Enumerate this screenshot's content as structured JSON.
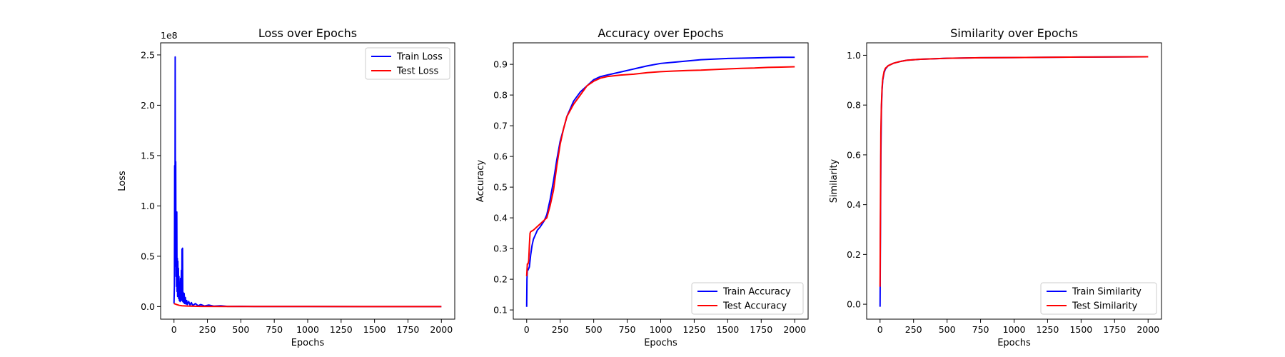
{
  "figure": {
    "background": "#ffffff"
  },
  "chart_data": [
    {
      "type": "line",
      "title": "Loss over Epochs",
      "xlabel": "Epochs",
      "ylabel": "Loss",
      "offset_text": "1e8",
      "xlim": [
        -100,
        2100
      ],
      "ylim": [
        -12500000,
        262000000
      ],
      "xticks": [
        0,
        250,
        500,
        750,
        1000,
        1250,
        1500,
        1750,
        2000
      ],
      "xtick_labels": [
        "0",
        "250",
        "500",
        "750",
        "1000",
        "1250",
        "1500",
        "1750",
        "2000"
      ],
      "yticks": [
        0,
        50000000,
        100000000,
        150000000,
        200000000,
        250000000
      ],
      "ytick_labels": [
        "0.0",
        "0.5",
        "1.0",
        "1.5",
        "2.0",
        "2.5"
      ],
      "legend_position": "upper right",
      "grid": false,
      "series": [
        {
          "name": "Train Loss",
          "color": "#0000ff",
          "points": [
            [
              0,
              3000000
            ],
            [
              3,
              20000000
            ],
            [
              5,
              140000000
            ],
            [
              7,
              40000000
            ],
            [
              9,
              248000000
            ],
            [
              11,
              60000000
            ],
            [
              13,
              144000000
            ],
            [
              15,
              30000000
            ],
            [
              17,
              92000000
            ],
            [
              19,
              20000000
            ],
            [
              21,
              94000000
            ],
            [
              23,
              15000000
            ],
            [
              25,
              48000000
            ],
            [
              27,
              10000000
            ],
            [
              29,
              45000000
            ],
            [
              31,
              12000000
            ],
            [
              33,
              38000000
            ],
            [
              35,
              8000000
            ],
            [
              37,
              30000000
            ],
            [
              40,
              6000000
            ],
            [
              43,
              22000000
            ],
            [
              46,
              5000000
            ],
            [
              49,
              28000000
            ],
            [
              52,
              6000000
            ],
            [
              55,
              36000000
            ],
            [
              58,
              8000000
            ],
            [
              60,
              57000000
            ],
            [
              62,
              6000000
            ],
            [
              64,
              58000000
            ],
            [
              66,
              5000000
            ],
            [
              69,
              14000000
            ],
            [
              72,
              4000000
            ],
            [
              76,
              13000000
            ],
            [
              80,
              3000000
            ],
            [
              85,
              9000000
            ],
            [
              90,
              2500000
            ],
            [
              95,
              6000000
            ],
            [
              100,
              2000000
            ],
            [
              110,
              5000000
            ],
            [
              120,
              1500000
            ],
            [
              130,
              4000000
            ],
            [
              140,
              1000000
            ],
            [
              160,
              3000000
            ],
            [
              180,
              800000
            ],
            [
              200,
              2000000
            ],
            [
              230,
              600000
            ],
            [
              260,
              1500000
            ],
            [
              300,
              400000
            ],
            [
              350,
              800000
            ],
            [
              400,
              200000
            ],
            [
              500,
              300000
            ],
            [
              600,
              100000
            ],
            [
              800,
              100000
            ],
            [
              1000,
              50000
            ],
            [
              1500,
              30000
            ],
            [
              2000,
              20000
            ]
          ]
        },
        {
          "name": "Test Loss",
          "color": "#ff0000",
          "points": [
            [
              0,
              3000000
            ],
            [
              10,
              2500000
            ],
            [
              20,
              2000000
            ],
            [
              40,
              1200000
            ],
            [
              60,
              800000
            ],
            [
              100,
              500000
            ],
            [
              200,
              200000
            ],
            [
              400,
              100000
            ],
            [
              1000,
              50000
            ],
            [
              2000,
              30000
            ]
          ]
        }
      ]
    },
    {
      "type": "line",
      "title": "Accuracy over Epochs",
      "xlabel": "Epochs",
      "ylabel": "Accuracy",
      "xlim": [
        -100,
        2100
      ],
      "ylim": [
        0.07,
        0.97
      ],
      "xticks": [
        0,
        250,
        500,
        750,
        1000,
        1250,
        1500,
        1750,
        2000
      ],
      "xtick_labels": [
        "0",
        "250",
        "500",
        "750",
        "1000",
        "1250",
        "1500",
        "1750",
        "2000"
      ],
      "yticks": [
        0.1,
        0.2,
        0.3,
        0.4,
        0.5,
        0.6,
        0.7,
        0.8,
        0.9
      ],
      "ytick_labels": [
        "0.1",
        "0.2",
        "0.3",
        "0.4",
        "0.5",
        "0.6",
        "0.7",
        "0.8",
        "0.9"
      ],
      "legend_position": "lower right",
      "grid": false,
      "series": [
        {
          "name": "Train Accuracy",
          "color": "#0000ff",
          "points": [
            [
              0,
              0.11
            ],
            [
              2,
              0.2
            ],
            [
              5,
              0.23
            ],
            [
              10,
              0.23
            ],
            [
              20,
              0.24
            ],
            [
              30,
              0.28
            ],
            [
              40,
              0.31
            ],
            [
              50,
              0.33
            ],
            [
              60,
              0.34
            ],
            [
              80,
              0.36
            ],
            [
              100,
              0.37
            ],
            [
              130,
              0.39
            ],
            [
              150,
              0.41
            ],
            [
              175,
              0.46
            ],
            [
              200,
              0.52
            ],
            [
              225,
              0.59
            ],
            [
              250,
              0.65
            ],
            [
              275,
              0.69
            ],
            [
              300,
              0.73
            ],
            [
              350,
              0.78
            ],
            [
              400,
              0.81
            ],
            [
              450,
              0.83
            ],
            [
              500,
              0.85
            ],
            [
              550,
              0.86
            ],
            [
              600,
              0.865
            ],
            [
              700,
              0.875
            ],
            [
              800,
              0.885
            ],
            [
              900,
              0.895
            ],
            [
              1000,
              0.903
            ],
            [
              1100,
              0.907
            ],
            [
              1200,
              0.911
            ],
            [
              1300,
              0.915
            ],
            [
              1400,
              0.917
            ],
            [
              1500,
              0.919
            ],
            [
              1600,
              0.92
            ],
            [
              1700,
              0.921
            ],
            [
              1800,
              0.922
            ],
            [
              1900,
              0.923
            ],
            [
              2000,
              0.923
            ]
          ]
        },
        {
          "name": "Test Accuracy",
          "color": "#ff0000",
          "points": [
            [
              0,
              0.21
            ],
            [
              5,
              0.25
            ],
            [
              10,
              0.25
            ],
            [
              15,
              0.26
            ],
            [
              20,
              0.31
            ],
            [
              25,
              0.35
            ],
            [
              30,
              0.355
            ],
            [
              50,
              0.36
            ],
            [
              75,
              0.37
            ],
            [
              100,
              0.38
            ],
            [
              125,
              0.39
            ],
            [
              150,
              0.4
            ],
            [
              175,
              0.44
            ],
            [
              200,
              0.49
            ],
            [
              225,
              0.57
            ],
            [
              250,
              0.64
            ],
            [
              275,
              0.69
            ],
            [
              300,
              0.73
            ],
            [
              350,
              0.77
            ],
            [
              400,
              0.8
            ],
            [
              450,
              0.83
            ],
            [
              500,
              0.845
            ],
            [
              550,
              0.855
            ],
            [
              600,
              0.86
            ],
            [
              700,
              0.865
            ],
            [
              800,
              0.868
            ],
            [
              900,
              0.873
            ],
            [
              1000,
              0.876
            ],
            [
              1100,
              0.878
            ],
            [
              1200,
              0.88
            ],
            [
              1300,
              0.881
            ],
            [
              1400,
              0.883
            ],
            [
              1500,
              0.885
            ],
            [
              1600,
              0.887
            ],
            [
              1700,
              0.888
            ],
            [
              1800,
              0.89
            ],
            [
              1900,
              0.891
            ],
            [
              2000,
              0.892
            ]
          ]
        }
      ]
    },
    {
      "type": "line",
      "title": "Similarity over Epochs",
      "xlabel": "Epochs",
      "ylabel": "Similarity",
      "xlim": [
        -100,
        2100
      ],
      "ylim": [
        -0.06,
        1.05
      ],
      "xticks": [
        0,
        250,
        500,
        750,
        1000,
        1250,
        1500,
        1750,
        2000
      ],
      "xtick_labels": [
        "0",
        "250",
        "500",
        "750",
        "1000",
        "1250",
        "1500",
        "1750",
        "2000"
      ],
      "yticks": [
        0.0,
        0.2,
        0.4,
        0.6,
        0.8,
        1.0
      ],
      "ytick_labels": [
        "0.0",
        "0.2",
        "0.4",
        "0.6",
        "0.8",
        "1.0"
      ],
      "legend_position": "lower right",
      "grid": false,
      "series": [
        {
          "name": "Train Similarity",
          "color": "#0000ff",
          "points": [
            [
              0,
              -0.01
            ],
            [
              3,
              0.3
            ],
            [
              6,
              0.6
            ],
            [
              10,
              0.78
            ],
            [
              15,
              0.86
            ],
            [
              20,
              0.9
            ],
            [
              30,
              0.93
            ],
            [
              40,
              0.945
            ],
            [
              60,
              0.958
            ],
            [
              100,
              0.968
            ],
            [
              150,
              0.975
            ],
            [
              200,
              0.98
            ],
            [
              300,
              0.984
            ],
            [
              500,
              0.988
            ],
            [
              750,
              0.99
            ],
            [
              1000,
              0.991
            ],
            [
              1500,
              0.993
            ],
            [
              2000,
              0.994
            ]
          ]
        },
        {
          "name": "Test Similarity",
          "color": "#ff0000",
          "points": [
            [
              0,
              0.07
            ],
            [
              3,
              0.4
            ],
            [
              6,
              0.69
            ],
            [
              10,
              0.8
            ],
            [
              15,
              0.87
            ],
            [
              20,
              0.905
            ],
            [
              30,
              0.935
            ],
            [
              40,
              0.948
            ],
            [
              60,
              0.958
            ],
            [
              100,
              0.968
            ],
            [
              150,
              0.975
            ],
            [
              200,
              0.98
            ],
            [
              300,
              0.984
            ],
            [
              500,
              0.988
            ],
            [
              750,
              0.99
            ],
            [
              1000,
              0.991
            ],
            [
              1500,
              0.993
            ],
            [
              2000,
              0.994
            ]
          ]
        }
      ]
    }
  ]
}
